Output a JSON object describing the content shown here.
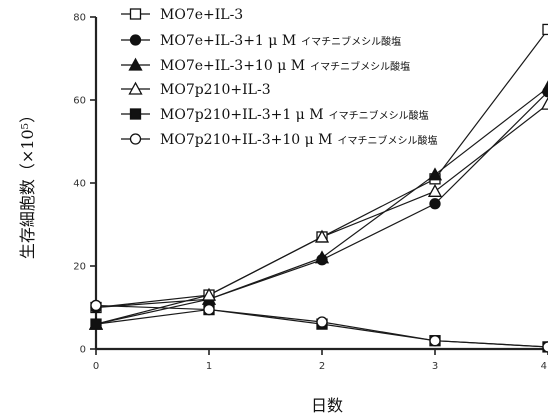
{
  "chart_data": {
    "type": "line",
    "xlabel": "日数",
    "ylabel": "生存細胞数（×10⁵）",
    "x": [
      0,
      1,
      2,
      3,
      4
    ],
    "xticks": [
      "0",
      "1",
      "2",
      "3",
      "4"
    ],
    "xlim": [
      0,
      4
    ],
    "yticks": [
      "0",
      "20",
      "40",
      "60",
      "80"
    ],
    "ylim": [
      0,
      80
    ],
    "grid": false,
    "legend_position": "top-left",
    "series": [
      {
        "name_main": "MO7e+IL-3",
        "name_small": "",
        "marker": "square-open",
        "values": [
          10,
          13,
          27,
          41,
          77
        ]
      },
      {
        "name_main": "MO7e+IL-3+1 μ M",
        "name_small": "イマチニブメシル酸塩",
        "marker": "circle-filled",
        "values": [
          10,
          12,
          21.5,
          35,
          62
        ]
      },
      {
        "name_main": "MO7e+IL-3+10 μ M",
        "name_small": "イマチニブメシル酸塩",
        "marker": "triangle-filled",
        "values": [
          6,
          12,
          22,
          42,
          63
        ]
      },
      {
        "name_main": "MO7p210+IL-3",
        "name_small": "",
        "marker": "triangle-open",
        "values": [
          6,
          13,
          27,
          38,
          59
        ]
      },
      {
        "name_main": "MO7p210+IL-3+1 μ M",
        "name_small": "イマチニブメシル酸塩",
        "marker": "square-filled",
        "values": [
          6,
          9.5,
          6,
          2,
          0.5
        ]
      },
      {
        "name_main": "MO7p210+IL-3+10 μ M",
        "name_small": "イマチニブメシル酸塩",
        "marker": "circle-open",
        "values": [
          10.5,
          9.5,
          6.5,
          2,
          0.5
        ]
      }
    ]
  }
}
